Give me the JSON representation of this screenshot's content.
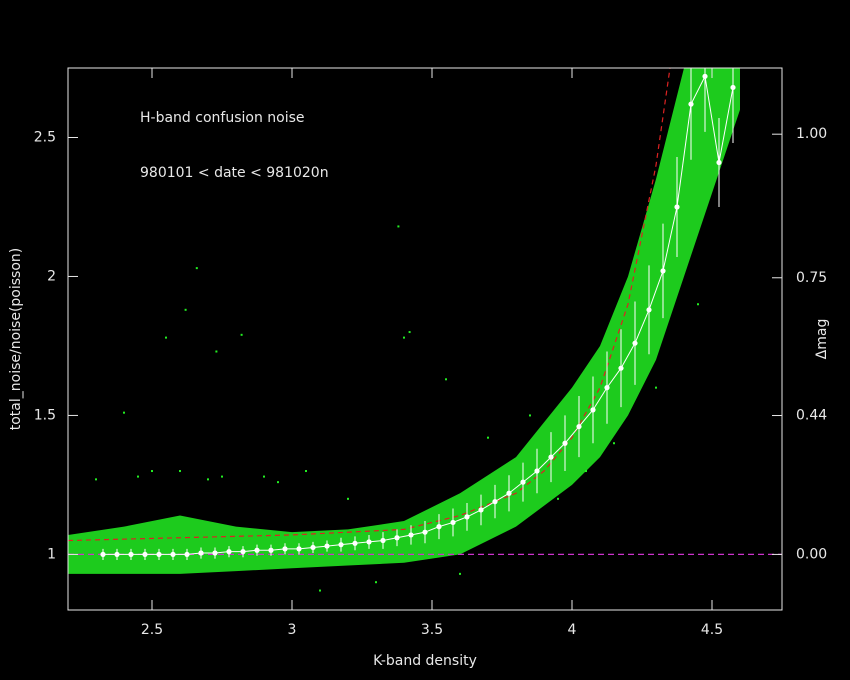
{
  "chart_data": {
    "type": "scatter",
    "annotations": [
      "H-band confusion noise",
      "980101 < date < 981020n"
    ],
    "xlabel": "K-band density",
    "ylabel": "total_noise/noise(poisson)",
    "y2label": "Δmag",
    "xlim": [
      2.2,
      4.75
    ],
    "ylim": [
      0.8,
      2.75
    ],
    "xticks": [
      2.5,
      3,
      3.5,
      4,
      4.5
    ],
    "yticks": [
      1,
      1.5,
      2,
      2.5
    ],
    "y2scale": "magnitude",
    "y2lim": [
      -0.24,
      1.1
    ],
    "y2ticks": [
      {
        "value": 0,
        "label": "0.00"
      },
      {
        "value": 0.44,
        "label": "0.44"
      },
      {
        "value": 0.75,
        "label": "0.75"
      },
      {
        "value": 1,
        "label": "1.00"
      }
    ],
    "band": {
      "color": "#22ee22",
      "x": [
        2.2,
        2.4,
        2.6,
        2.8,
        3.0,
        3.2,
        3.4,
        3.6,
        3.8,
        4.0,
        4.1,
        4.2,
        4.3,
        4.4,
        4.5,
        4.6
      ],
      "low": [
        0.93,
        0.93,
        0.93,
        0.94,
        0.95,
        0.96,
        0.97,
        1.0,
        1.1,
        1.25,
        1.35,
        1.5,
        1.7,
        2.0,
        2.3,
        2.6
      ],
      "high": [
        1.07,
        1.1,
        1.14,
        1.1,
        1.08,
        1.09,
        1.12,
        1.22,
        1.35,
        1.6,
        1.75,
        2.0,
        2.35,
        2.75,
        2.75,
        2.75
      ]
    },
    "points": {
      "color": "#22ee22",
      "x": [
        2.4,
        2.55,
        2.62,
        2.66,
        2.73,
        2.82,
        2.9,
        3.05,
        3.38,
        3.4,
        3.42,
        3.55,
        2.45,
        2.6,
        2.7,
        2.95,
        3.2,
        3.7,
        3.85,
        2.3,
        2.5,
        2.75,
        3.1,
        3.3,
        3.6,
        3.95,
        4.05,
        4.15,
        4.3,
        4.45
      ],
      "y": [
        1.51,
        1.78,
        1.88,
        2.03,
        1.73,
        1.79,
        1.28,
        1.3,
        2.18,
        1.78,
        1.8,
        1.63,
        1.28,
        1.3,
        1.27,
        1.26,
        1.2,
        1.42,
        1.5,
        1.27,
        1.3,
        1.28,
        0.87,
        0.9,
        0.93,
        1.2,
        1.3,
        1.4,
        1.6,
        1.9
      ]
    },
    "fit": {
      "color": "#dd2222",
      "x": [
        2.2,
        2.6,
        3.0,
        3.4,
        3.6,
        3.8,
        3.9,
        4.0,
        4.1,
        4.2,
        4.3,
        4.35
      ],
      "y": [
        1.05,
        1.06,
        1.07,
        1.09,
        1.14,
        1.22,
        1.3,
        1.42,
        1.6,
        1.9,
        2.4,
        2.75
      ]
    },
    "reference": {
      "color": "#cc33cc",
      "y": 1
    },
    "means": {
      "color": "#ffffff",
      "x": [
        2.325,
        2.375,
        2.425,
        2.475,
        2.525,
        2.575,
        2.625,
        2.675,
        2.725,
        2.775,
        2.825,
        2.875,
        2.925,
        2.975,
        3.025,
        3.075,
        3.125,
        3.175,
        3.225,
        3.275,
        3.325,
        3.375,
        3.425,
        3.475,
        3.525,
        3.575,
        3.625,
        3.675,
        3.725,
        3.775,
        3.825,
        3.875,
        3.925,
        3.975,
        4.025,
        4.075,
        4.125,
        4.175,
        4.225,
        4.275,
        4.325,
        4.375,
        4.425,
        4.475,
        4.525,
        4.575
      ],
      "y": [
        1.0,
        1.0,
        1.0,
        1.0,
        1.0,
        1.0,
        1.0,
        1.005,
        1.005,
        1.01,
        1.01,
        1.015,
        1.015,
        1.02,
        1.02,
        1.025,
        1.03,
        1.035,
        1.04,
        1.045,
        1.05,
        1.06,
        1.07,
        1.08,
        1.1,
        1.115,
        1.135,
        1.16,
        1.19,
        1.22,
        1.26,
        1.3,
        1.35,
        1.4,
        1.46,
        1.52,
        1.6,
        1.67,
        1.76,
        1.88,
        2.02,
        2.25,
        2.62,
        2.72,
        2.41,
        2.68
      ],
      "err": [
        0.02,
        0.02,
        0.02,
        0.02,
        0.02,
        0.02,
        0.02,
        0.02,
        0.02,
        0.02,
        0.02,
        0.02,
        0.02,
        0.02,
        0.02,
        0.02,
        0.02,
        0.025,
        0.025,
        0.025,
        0.03,
        0.03,
        0.035,
        0.04,
        0.045,
        0.05,
        0.05,
        0.055,
        0.06,
        0.065,
        0.07,
        0.08,
        0.09,
        0.1,
        0.11,
        0.12,
        0.13,
        0.14,
        0.15,
        0.16,
        0.17,
        0.18,
        0.2,
        0.2,
        0.16,
        0.2
      ]
    }
  }
}
